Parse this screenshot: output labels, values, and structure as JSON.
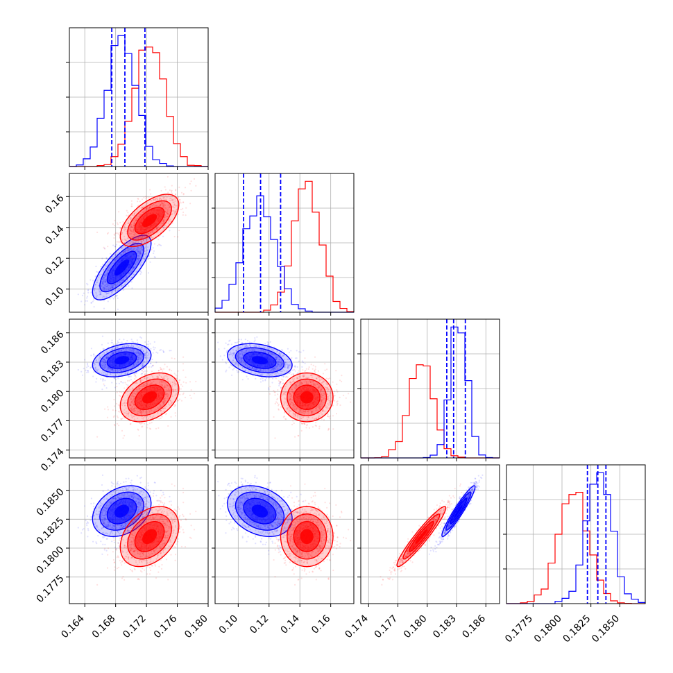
{
  "colors": {
    "series_a": "#0000ff",
    "series_b": "#ff0000"
  },
  "chart_data": {
    "type": "corner",
    "title": "",
    "grid": true,
    "legend": "none",
    "params": [
      {
        "range": [
          0.162,
          0.18
        ],
        "ticks": [
          0.164,
          0.168,
          0.172,
          0.176,
          0.18
        ],
        "tick_labels": [
          "0.164",
          "0.168",
          "0.172",
          "0.176",
          "0.180"
        ]
      },
      {
        "range": [
          0.085,
          0.175
        ],
        "ticks": [
          0.1,
          0.12,
          0.14,
          0.16
        ],
        "tick_labels": [
          "0.10",
          "0.12",
          "0.14",
          "0.16"
        ]
      },
      {
        "range": [
          0.1732,
          0.1874
        ],
        "ticks": [
          0.174,
          0.177,
          0.18,
          0.183,
          0.186
        ],
        "tick_labels": [
          "0.174",
          "0.177",
          "0.180",
          "0.183",
          "0.186"
        ]
      },
      {
        "range": [
          0.1752,
          0.1872
        ],
        "ticks": [
          0.1775,
          0.18,
          0.1825,
          0.185
        ],
        "tick_labels": [
          "0.1775",
          "0.1800",
          "0.1825",
          "0.1850"
        ]
      }
    ],
    "series": [
      {
        "color": "#0000ff",
        "mean": [
          0.1688,
          0.114,
          0.1832,
          0.1832
        ],
        "sd": [
          0.0019,
          0.0105,
          0.00085,
          0.0011
        ],
        "corr": [
          [
            1,
            0.75,
            0.3,
            0.3
          ],
          [
            0.75,
            1,
            -0.3,
            -0.3
          ],
          [
            0.3,
            -0.3,
            1,
            0.95
          ],
          [
            0.3,
            -0.3,
            0.95,
            1
          ]
        ],
        "quantiles": [
          [
            0.1675,
            0.1692,
            0.1718
          ],
          [
            0.1035,
            0.1145,
            0.1275
          ],
          [
            0.182,
            0.1827,
            0.1839
          ],
          [
            0.1822,
            0.1831,
            0.1838
          ]
        ]
      },
      {
        "color": "#ff0000",
        "mean": [
          0.1724,
          0.1445,
          0.1794,
          0.181
        ],
        "sd": [
          0.0019,
          0.0085,
          0.00125,
          0.0013
        ],
        "corr": [
          [
            1,
            0.6,
            0.35,
            0.35
          ],
          [
            0.6,
            1,
            0.0,
            0.0
          ],
          [
            0.35,
            0.0,
            1,
            0.95
          ],
          [
            0.35,
            0.0,
            0.95,
            1
          ]
        ],
        "quantiles": []
      }
    ]
  }
}
